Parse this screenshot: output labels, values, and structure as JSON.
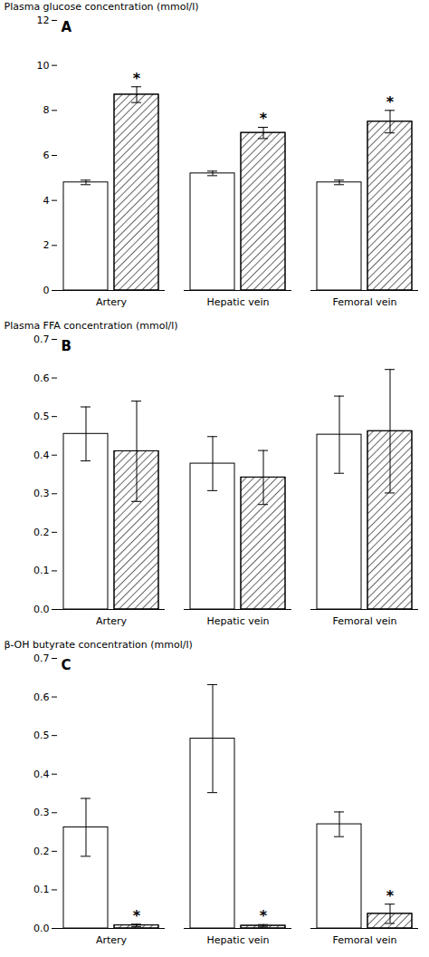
{
  "chart_data": [
    {
      "type": "bar",
      "title": "A",
      "ylabel": "Plasma glucose concentration (mmol/l)",
      "categories": [
        "Artery",
        "Hepatic vein",
        "Femoral vein"
      ],
      "series": [
        {
          "color": "white",
          "values": [
            4.8,
            5.2,
            4.8
          ],
          "errors": [
            0.1,
            0.1,
            0.1
          ]
        },
        {
          "color": "white",
          "values": [
            8.7,
            7.0,
            7.5
          ],
          "errors": [
            0.35,
            0.25,
            0.5
          ],
          "annotations": [
            "*",
            "*",
            "*"
          ]
        }
      ],
      "ylim": [
        0,
        12.0
      ],
      "yticks": [
        0,
        2,
        4,
        6,
        8,
        10,
        12
      ],
      "grid": false
    },
    {
      "type": "bar",
      "title": "B",
      "ylabel": "Plasma FFA concentration (mmol/l)",
      "categories": [
        "Artery",
        "Hepatic vein",
        "Femoral vein"
      ],
      "series": [
        {
          "color": "white",
          "values": [
            0.455,
            0.378,
            0.453
          ],
          "errors": [
            0.07,
            0.07,
            0.1
          ]
        },
        {
          "color": "white",
          "values": [
            0.41,
            0.342,
            0.462
          ],
          "errors": [
            0.13,
            0.07,
            0.16
          ]
        }
      ],
      "ylim": [
        0,
        0.7
      ],
      "yticks": [
        {
          "value": 0,
          "label": "0.0"
        },
        0.1,
        0.2,
        0.3,
        0.4,
        0.5,
        0.6,
        0.7
      ],
      "grid": false
    },
    {
      "type": "bar",
      "title": "C",
      "ylabel": "β-OH butyrate concentration (mmol/l)",
      "categories": [
        "Artery",
        "Hepatic vein",
        "Femoral vein"
      ],
      "series": [
        {
          "color": "white",
          "values": [
            0.262,
            0.492,
            0.27
          ],
          "errors": [
            0.075,
            0.14,
            0.032
          ]
        },
        {
          "color": "white",
          "values": [
            0.008,
            0.007,
            0.038
          ],
          "errors": [
            0.003,
            0.003,
            0.025
          ],
          "annotations": [
            "*",
            "*",
            "*"
          ]
        }
      ],
      "ylim": [
        0,
        0.7
      ],
      "yticks": [
        {
          "value": 0,
          "label": "0.0"
        },
        0.1,
        0.2,
        0.3,
        0.4,
        0.5,
        0.6,
        0.7
      ],
      "grid": false
    }
  ]
}
